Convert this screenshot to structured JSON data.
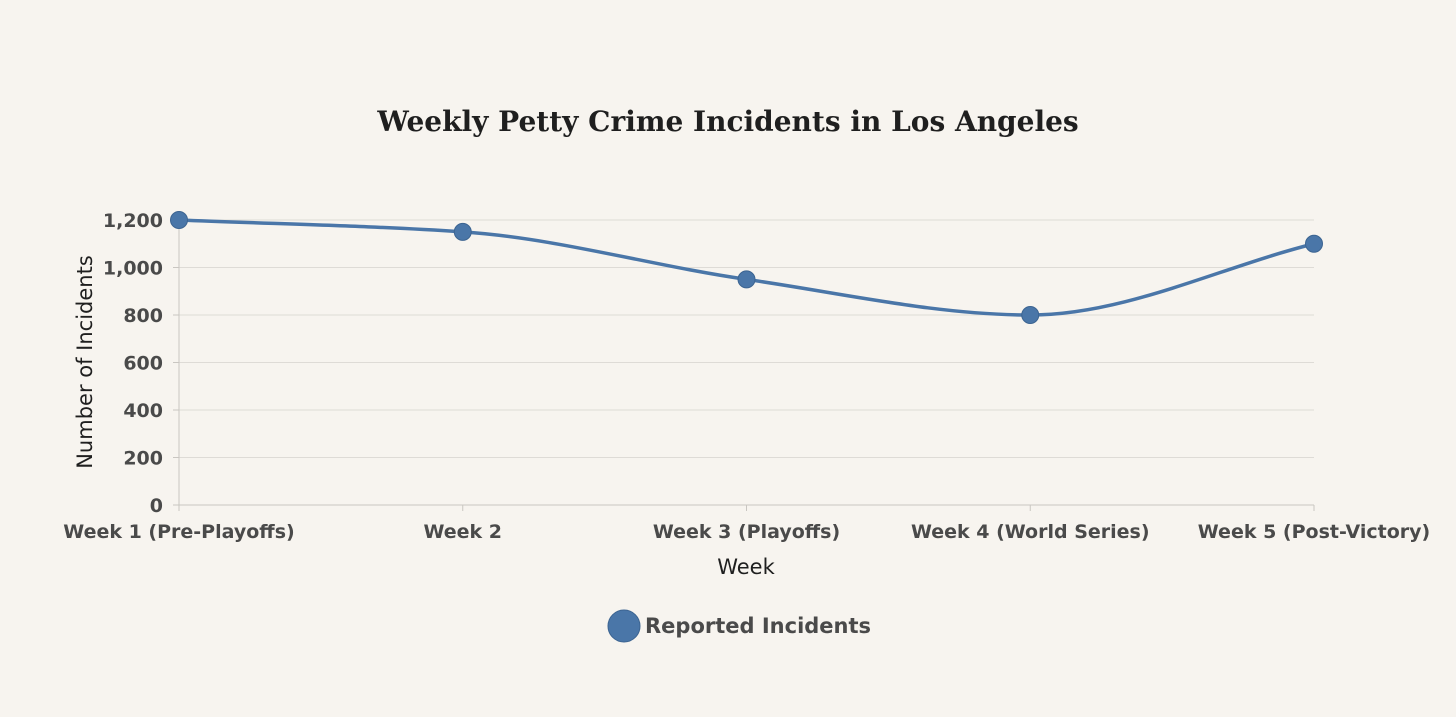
{
  "chart_data": {
    "type": "line",
    "title": "Weekly Petty Crime Incidents in Los Angeles",
    "xlabel": "Week",
    "ylabel": "Number of Incidents",
    "categories": [
      "Week 1 (Pre-Playoffs)",
      "Week 2",
      "Week 3 (Playoffs)",
      "Week 4 (World Series)",
      "Week 5 (Post-Victory)"
    ],
    "series": [
      {
        "name": "Reported Incidents",
        "values": [
          1200,
          1150,
          950,
          800,
          1100
        ]
      }
    ],
    "ylim": [
      0,
      1200
    ],
    "yticks": [
      0,
      200,
      400,
      600,
      800,
      1000,
      1200
    ],
    "ytick_labels": [
      "0",
      "200",
      "400",
      "600",
      "800",
      "1,000",
      "1,200"
    ],
    "grid": true,
    "legend_position": "bottom",
    "colors": {
      "series": "#4a76a8",
      "background": "#f7f4ef"
    }
  }
}
